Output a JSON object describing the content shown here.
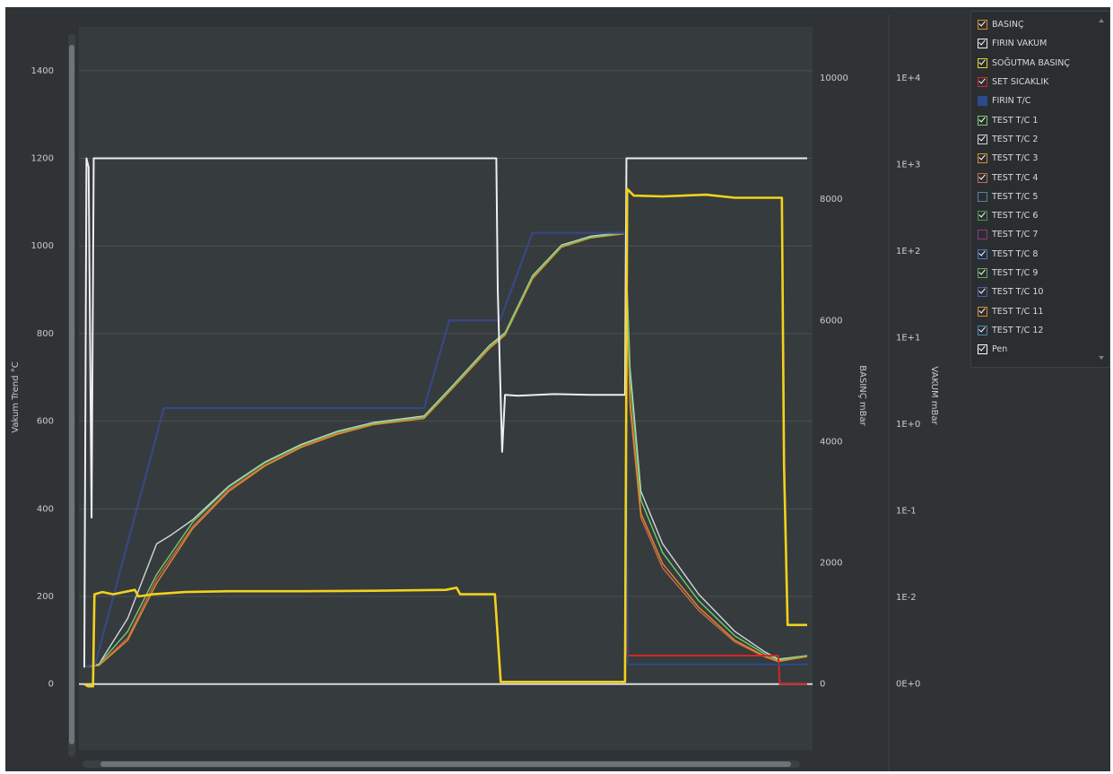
{
  "chart_data": {
    "type": "line",
    "x_range": [
      0,
      1000
    ],
    "left_axis": {
      "title": "Vakum Trend °C",
      "ticks": [
        "1400",
        "1200",
        "1000",
        "800",
        "600",
        "400",
        "200",
        "0"
      ],
      "range": [
        -150,
        1500
      ]
    },
    "middle_axis": {
      "title": "BASINÇ mBar",
      "ticks": [
        "10000",
        "8000",
        "6000",
        "4000",
        "2000",
        "0"
      ],
      "range": [
        0,
        10000
      ]
    },
    "right_axis": {
      "title": "VAKUM mBar",
      "ticks": [
        "1E+4",
        "1E+3",
        "1E+2",
        "1E+1",
        "1E+0",
        "1E-1",
        "1E-2",
        "0E+0"
      ]
    },
    "grid": true,
    "legend_position": "top-right",
    "series": [
      {
        "name": "BASINÇ",
        "color": "#e08a2a",
        "checked": true
      },
      {
        "name": "FIRIN VAKUM",
        "color": "#eeeeee",
        "checked": true,
        "points": [
          [
            0,
            38
          ],
          [
            3,
            1200
          ],
          [
            6,
            1180
          ],
          [
            10,
            380
          ],
          [
            13,
            1200
          ],
          [
            570,
            1200
          ],
          [
            572,
            900
          ],
          [
            578,
            530
          ],
          [
            582,
            660
          ],
          [
            600,
            658
          ],
          [
            650,
            662
          ],
          [
            700,
            660
          ],
          [
            748,
            660
          ],
          [
            750,
            1200
          ],
          [
            1000,
            1200
          ]
        ]
      },
      {
        "name": "SOĞUTMA BASINÇ",
        "color": "#f2d21b",
        "checked": true,
        "points": [
          [
            0,
            0
          ],
          [
            5,
            -5
          ],
          [
            12,
            -5
          ],
          [
            14,
            205
          ],
          [
            25,
            210
          ],
          [
            40,
            205
          ],
          [
            70,
            215
          ],
          [
            75,
            200
          ],
          [
            95,
            205
          ],
          [
            140,
            210
          ],
          [
            200,
            212
          ],
          [
            300,
            212
          ],
          [
            400,
            213
          ],
          [
            500,
            215
          ],
          [
            515,
            220
          ],
          [
            520,
            205
          ],
          [
            568,
            205
          ],
          [
            576,
            5
          ],
          [
            748,
            5
          ],
          [
            751,
            1130
          ],
          [
            760,
            1115
          ],
          [
            800,
            1113
          ],
          [
            860,
            1117
          ],
          [
            900,
            1110
          ],
          [
            965,
            1110
          ],
          [
            968,
            500
          ],
          [
            973,
            135
          ],
          [
            1000,
            135
          ]
        ]
      },
      {
        "name": "SET SICAKLIK",
        "color": "#d42828",
        "checked": true,
        "points": [
          [
            0,
            40
          ],
          [
            15,
            45
          ],
          [
            110,
            630
          ],
          [
            470,
            630
          ],
          [
            505,
            830
          ],
          [
            575,
            830
          ],
          [
            620,
            1030
          ],
          [
            748,
            1030
          ],
          [
            751,
            65
          ],
          [
            960,
            65
          ],
          [
            962,
            0
          ],
          [
            1000,
            0
          ]
        ]
      },
      {
        "name": "FIRIN T/C",
        "color": "#2d4a8c",
        "checked": false,
        "points": [
          [
            0,
            40
          ],
          [
            15,
            45
          ],
          [
            110,
            630
          ],
          [
            470,
            630
          ],
          [
            505,
            830
          ],
          [
            575,
            830
          ],
          [
            620,
            1030
          ],
          [
            748,
            1030
          ],
          [
            752,
            45
          ],
          [
            1000,
            45
          ]
        ]
      },
      {
        "name": "TEST T/C 1",
        "color": "#6fcf6a",
        "checked": true,
        "points": [
          [
            0,
            40
          ],
          [
            20,
            45
          ],
          [
            60,
            120
          ],
          [
            100,
            250
          ],
          [
            150,
            370
          ],
          [
            200,
            450
          ],
          [
            250,
            505
          ],
          [
            300,
            545
          ],
          [
            350,
            575
          ],
          [
            400,
            595
          ],
          [
            470,
            610
          ],
          [
            510,
            680
          ],
          [
            560,
            770
          ],
          [
            582,
            800
          ],
          [
            620,
            930
          ],
          [
            660,
            1000
          ],
          [
            700,
            1020
          ],
          [
            748,
            1030
          ],
          [
            755,
            700
          ],
          [
            770,
            420
          ],
          [
            800,
            300
          ],
          [
            850,
            190
          ],
          [
            900,
            110
          ],
          [
            940,
            70
          ],
          [
            960,
            55
          ],
          [
            1000,
            65
          ]
        ]
      },
      {
        "name": "TEST T/C 2",
        "color": "#cfd7dc",
        "checked": true,
        "points": [
          [
            0,
            40
          ],
          [
            20,
            45
          ],
          [
            60,
            150
          ],
          [
            100,
            320
          ],
          [
            120,
            340
          ],
          [
            150,
            375
          ],
          [
            200,
            452
          ],
          [
            250,
            507
          ],
          [
            300,
            547
          ],
          [
            350,
            577
          ],
          [
            400,
            597
          ],
          [
            470,
            612
          ],
          [
            510,
            682
          ],
          [
            560,
            772
          ],
          [
            582,
            802
          ],
          [
            620,
            932
          ],
          [
            660,
            1002
          ],
          [
            700,
            1022
          ],
          [
            748,
            1031
          ],
          [
            755,
            720
          ],
          [
            770,
            440
          ],
          [
            800,
            320
          ],
          [
            850,
            205
          ],
          [
            900,
            120
          ],
          [
            940,
            75
          ],
          [
            960,
            57
          ],
          [
            1000,
            65
          ]
        ]
      },
      {
        "name": "TEST T/C 3",
        "color": "#e08a2a",
        "checked": true,
        "points": [
          [
            0,
            40
          ],
          [
            20,
            42
          ],
          [
            60,
            100
          ],
          [
            100,
            230
          ],
          [
            150,
            355
          ],
          [
            200,
            440
          ],
          [
            250,
            498
          ],
          [
            300,
            540
          ],
          [
            350,
            570
          ],
          [
            400,
            592
          ],
          [
            470,
            606
          ],
          [
            510,
            676
          ],
          [
            560,
            765
          ],
          [
            582,
            796
          ],
          [
            620,
            925
          ],
          [
            660,
            997
          ],
          [
            700,
            1018
          ],
          [
            748,
            1028
          ],
          [
            755,
            650
          ],
          [
            770,
            390
          ],
          [
            800,
            275
          ],
          [
            850,
            175
          ],
          [
            900,
            100
          ],
          [
            940,
            65
          ],
          [
            960,
            52
          ],
          [
            1000,
            63
          ]
        ]
      },
      {
        "name": "TEST T/C 4",
        "color": "#c96a4a",
        "checked": true,
        "points": [
          [
            0,
            40
          ],
          [
            20,
            43
          ],
          [
            60,
            105
          ],
          [
            100,
            240
          ],
          [
            150,
            360
          ],
          [
            200,
            444
          ],
          [
            250,
            500
          ],
          [
            300,
            542
          ],
          [
            350,
            572
          ],
          [
            400,
            593
          ],
          [
            470,
            608
          ],
          [
            510,
            678
          ],
          [
            560,
            767
          ],
          [
            582,
            798
          ],
          [
            620,
            928
          ],
          [
            660,
            998
          ],
          [
            700,
            1019
          ],
          [
            748,
            1029
          ],
          [
            755,
            630
          ],
          [
            770,
            380
          ],
          [
            800,
            265
          ],
          [
            850,
            168
          ],
          [
            900,
            96
          ],
          [
            940,
            63
          ],
          [
            960,
            51
          ],
          [
            1000,
            63
          ]
        ]
      },
      {
        "name": "TEST T/C 5",
        "color": "#5a7fa8",
        "checked": false
      },
      {
        "name": "TEST T/C 6",
        "color": "#3e9c3e",
        "checked": true
      },
      {
        "name": "TEST T/C 7",
        "color": "#8a3a8a",
        "checked": false
      },
      {
        "name": "TEST T/C 8",
        "color": "#4a78c8",
        "checked": true
      },
      {
        "name": "TEST T/C 9",
        "color": "#5fae5f",
        "checked": true
      },
      {
        "name": "TEST T/C 10",
        "color": "#4a5fa8",
        "checked": true
      },
      {
        "name": "TEST T/C 11",
        "color": "#e08a2a",
        "checked": true
      },
      {
        "name": "TEST T/C 12",
        "color": "#4a88b8",
        "checked": true
      },
      {
        "name": "Pen",
        "color": "#ffffff",
        "checked": true
      }
    ]
  }
}
